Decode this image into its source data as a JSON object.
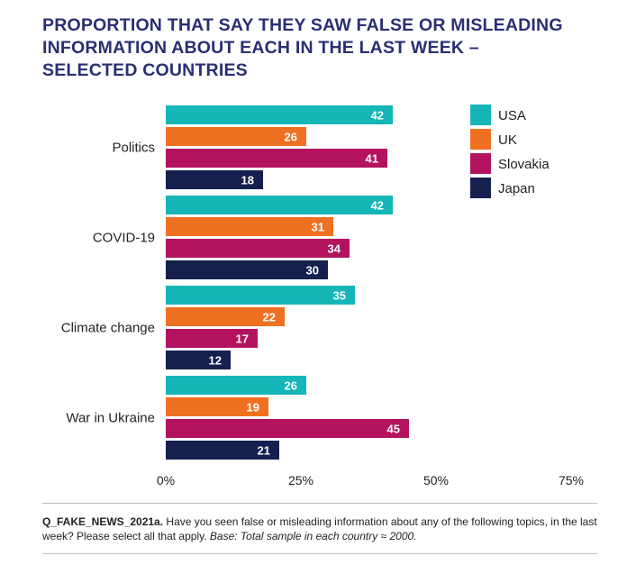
{
  "header": {
    "title_lines": [
      "PROPORTION THAT SAY THEY SAW FALSE OR MISLEADING",
      "INFORMATION ABOUT EACH IN THE LAST WEEK –",
      "SELECTED COUNTRIES"
    ]
  },
  "chart_data": {
    "type": "bar",
    "orientation": "horizontal",
    "categories": [
      "Politics",
      "COVID-19",
      "Climate change",
      "War in Ukraine"
    ],
    "series": [
      {
        "name": "USA",
        "color": "#15b5b8",
        "values": [
          42,
          42,
          35,
          26
        ]
      },
      {
        "name": "UK",
        "color": "#f07021",
        "values": [
          26,
          31,
          22,
          19
        ]
      },
      {
        "name": "Slovakia",
        "color": "#b3135e",
        "values": [
          41,
          34,
          17,
          45
        ]
      },
      {
        "name": "Japan",
        "color": "#15204f",
        "values": [
          18,
          30,
          12,
          21
        ]
      }
    ],
    "xlim": [
      0,
      75
    ],
    "xticks": [
      "0%",
      "25%",
      "50%",
      "75%"
    ],
    "xtick_values": [
      0,
      25,
      50,
      75
    ],
    "grid": false,
    "legend_position": "top-right",
    "data_labels": true
  },
  "footnote": {
    "code": "Q_FAKE_NEWS_2021a.",
    "question": " Have you seen false or misleading information about any of the following topics, in the last week? Please select all that apply. ",
    "base": "Base: Total sample in each country ≈ 2000."
  }
}
